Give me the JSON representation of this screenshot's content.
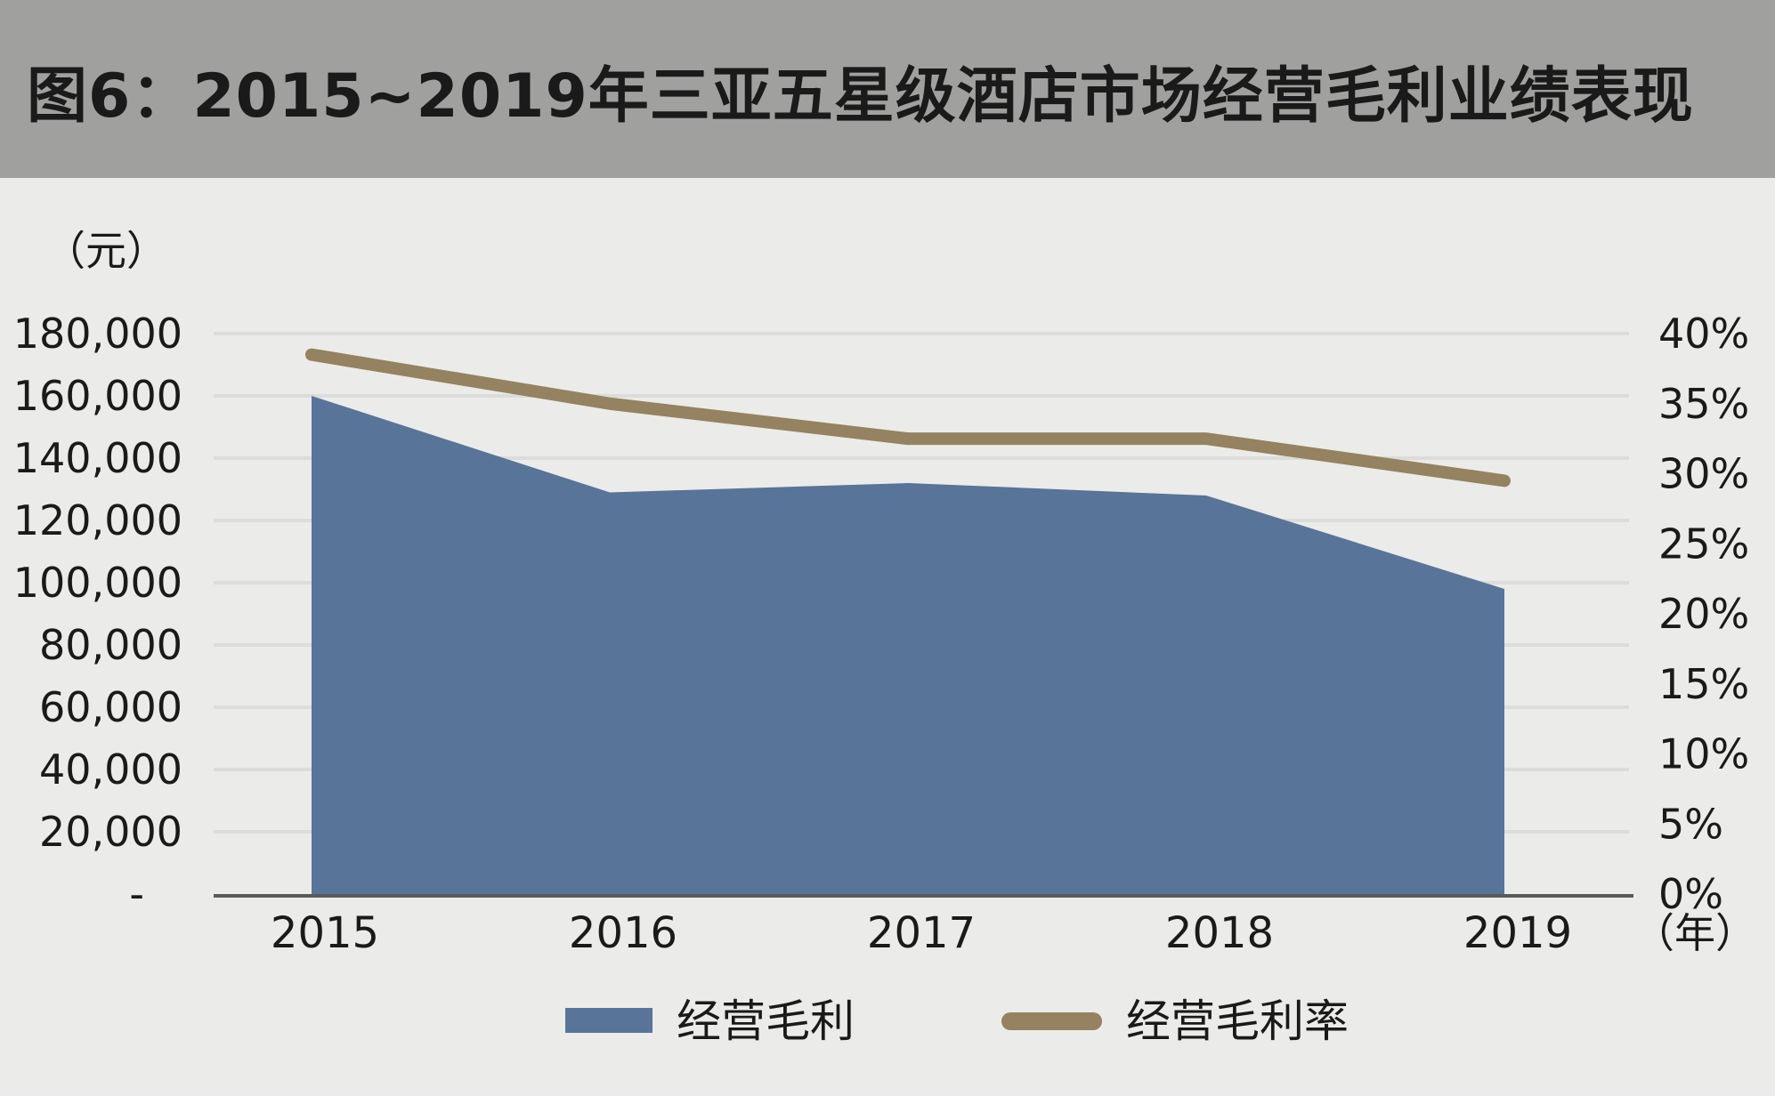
{
  "title": "图6：2015~2019年三亚五星级酒店市场经营毛利业绩表现",
  "colors": {
    "title_bar": "#a0a09e",
    "background": "#ebebe9",
    "area": "#587499",
    "line": "#958260",
    "grid": "#dcdcda",
    "axis": "#5a5a5a"
  },
  "chart_data": {
    "type": "area",
    "x": [
      "2015",
      "2016",
      "2017",
      "2018",
      "2019"
    ],
    "left_unit": "（元）",
    "x_unit": "（年）",
    "left_ticks": [
      "-",
      "20,000",
      "40,000",
      "60,000",
      "80,000",
      "100,000",
      "120,000",
      "140,000",
      "160,000",
      "180,000"
    ],
    "right_ticks": [
      "0%",
      "5%",
      "10%",
      "15%",
      "20%",
      "25%",
      "30%",
      "35%",
      "40%"
    ],
    "ylim_left": [
      0,
      180000
    ],
    "ylim_right": [
      0,
      0.4
    ],
    "grid": true,
    "legend_position": "bottom",
    "series": [
      {
        "name": "经营毛利",
        "type": "area",
        "axis": "left",
        "values": [
          160000,
          129000,
          132000,
          128000,
          98000
        ]
      },
      {
        "name": "经营毛利率",
        "type": "line",
        "axis": "right",
        "values": [
          0.385,
          0.35,
          0.325,
          0.325,
          0.295
        ]
      }
    ]
  }
}
